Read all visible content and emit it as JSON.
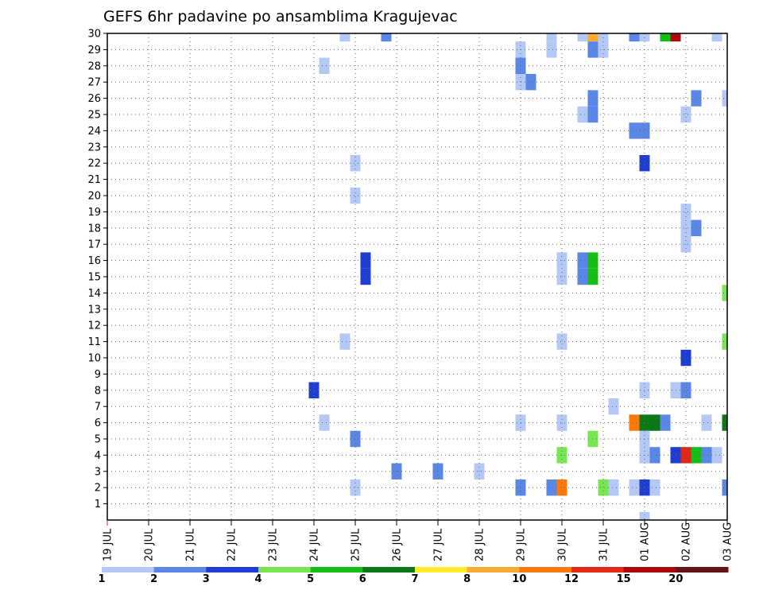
{
  "chart_data": {
    "type": "heatmap",
    "title": "GEFS 6hr padavine po ansamblima Kragujevac",
    "y_tick_labels": [
      "1",
      "2",
      "3",
      "4",
      "5",
      "6",
      "7",
      "8",
      "9",
      "10",
      "11",
      "12",
      "13",
      "14",
      "15",
      "16",
      "17",
      "18",
      "19",
      "20",
      "21",
      "22",
      "23",
      "24",
      "25",
      "26",
      "27",
      "28",
      "29",
      "30"
    ],
    "x_tick_labels": [
      "19 JUL",
      "20 JUL",
      "21 JUL",
      "22 JUL",
      "23 JUL",
      "24 JUL",
      "25 JUL",
      "26 JUL",
      "27 JUL",
      "28 JUL",
      "29 JUL",
      "30 JUL",
      "31 JUL",
      "01 AUG",
      "02 AUG",
      "03 AUG"
    ],
    "x_range_days": [
      0,
      15
    ],
    "y_range_members": [
      0,
      30
    ],
    "grid": true,
    "legend": {
      "position": "bottom",
      "boundary_labels": [
        "1",
        "2",
        "3",
        "4",
        "5",
        "6",
        "7",
        "8",
        "10",
        "12",
        "15",
        "20"
      ],
      "colors": [
        "#b4c8f5",
        "#5a87e6",
        "#1e3ed2",
        "#78e650",
        "#14be14",
        "#0a7814",
        "#ffeb28",
        "#ffaa32",
        "#ff780a",
        "#e12814",
        "#aa0a0a",
        "#641414"
      ]
    },
    "cells": [
      {
        "member": 30,
        "day": 5.75,
        "class": 0
      },
      {
        "member": 30,
        "day": 6.75,
        "class": 1
      },
      {
        "member": 30,
        "day": 10.75,
        "class": 0
      },
      {
        "member": 30,
        "day": 11.5,
        "class": 0
      },
      {
        "member": 30,
        "day": 11.75,
        "class": 7
      },
      {
        "member": 30,
        "day": 12,
        "class": 0
      },
      {
        "member": 30,
        "day": 12.75,
        "class": 1
      },
      {
        "member": 30,
        "day": 13,
        "class": 0
      },
      {
        "member": 30,
        "day": 13.5,
        "class": 4
      },
      {
        "member": 30,
        "day": 13.75,
        "class": 10
      },
      {
        "member": 30,
        "day": 14.75,
        "class": 0
      },
      {
        "member": 29,
        "day": 10,
        "class": 0
      },
      {
        "member": 29,
        "day": 10.75,
        "class": 0
      },
      {
        "member": 29,
        "day": 11.75,
        "class": 1
      },
      {
        "member": 29,
        "day": 12,
        "class": 0
      },
      {
        "member": 28,
        "day": 5.25,
        "class": 0
      },
      {
        "member": 28,
        "day": 10,
        "class": 1
      },
      {
        "member": 27,
        "day": 10,
        "class": 0
      },
      {
        "member": 27,
        "day": 10.25,
        "class": 1
      },
      {
        "member": 26,
        "day": 11.75,
        "class": 1
      },
      {
        "member": 26,
        "day": 14.25,
        "class": 1
      },
      {
        "member": 26,
        "day": 15,
        "class": 0
      },
      {
        "member": 25,
        "day": 11.5,
        "class": 0
      },
      {
        "member": 25,
        "day": 11.75,
        "class": 1
      },
      {
        "member": 25,
        "day": 14,
        "class": 0
      },
      {
        "member": 24,
        "day": 12.75,
        "class": 1
      },
      {
        "member": 24,
        "day": 13,
        "class": 1
      },
      {
        "member": 22,
        "day": 6,
        "class": 0
      },
      {
        "member": 22,
        "day": 13,
        "class": 2
      },
      {
        "member": 20,
        "day": 6,
        "class": 0
      },
      {
        "member": 19,
        "day": 14,
        "class": 0
      },
      {
        "member": 18,
        "day": 14,
        "class": 0
      },
      {
        "member": 18,
        "day": 14.25,
        "class": 1
      },
      {
        "member": 17,
        "day": 14,
        "class": 0
      },
      {
        "member": 16,
        "day": 6.25,
        "class": 2
      },
      {
        "member": 16,
        "day": 11,
        "class": 0
      },
      {
        "member": 16,
        "day": 11.5,
        "class": 1
      },
      {
        "member": 16,
        "day": 11.75,
        "class": 4
      },
      {
        "member": 15,
        "day": 6.25,
        "class": 2
      },
      {
        "member": 15,
        "day": 11,
        "class": 0
      },
      {
        "member": 15,
        "day": 11.5,
        "class": 1
      },
      {
        "member": 15,
        "day": 11.75,
        "class": 4
      },
      {
        "member": 14,
        "day": 15,
        "class": 3
      },
      {
        "member": 11,
        "day": 5.75,
        "class": 0
      },
      {
        "member": 11,
        "day": 11,
        "class": 0
      },
      {
        "member": 11,
        "day": 15,
        "class": 3
      },
      {
        "member": 10,
        "day": 14,
        "class": 2
      },
      {
        "member": 8,
        "day": 5,
        "class": 2
      },
      {
        "member": 8,
        "day": 13,
        "class": 0
      },
      {
        "member": 8,
        "day": 13.75,
        "class": 0
      },
      {
        "member": 8,
        "day": 14,
        "class": 1
      },
      {
        "member": 7,
        "day": 12.25,
        "class": 0
      },
      {
        "member": 6,
        "day": 5.25,
        "class": 0
      },
      {
        "member": 6,
        "day": 10,
        "class": 0
      },
      {
        "member": 6,
        "day": 11,
        "class": 0
      },
      {
        "member": 6,
        "day": 12.75,
        "class": 8
      },
      {
        "member": 6,
        "day": 13,
        "class": 5
      },
      {
        "member": 6,
        "day": 13.25,
        "class": 5
      },
      {
        "member": 6,
        "day": 13.5,
        "class": 1
      },
      {
        "member": 6,
        "day": 14.5,
        "class": 0
      },
      {
        "member": 6,
        "day": 15,
        "class": 5
      },
      {
        "member": 5,
        "day": 6,
        "class": 1
      },
      {
        "member": 5,
        "day": 11.75,
        "class": 3
      },
      {
        "member": 5,
        "day": 13,
        "class": 0
      },
      {
        "member": 4,
        "day": 11,
        "class": 3
      },
      {
        "member": 4,
        "day": 13,
        "class": 0
      },
      {
        "member": 4,
        "day": 13.25,
        "class": 1
      },
      {
        "member": 4,
        "day": 13.75,
        "class": 2
      },
      {
        "member": 4,
        "day": 14,
        "class": 9
      },
      {
        "member": 4,
        "day": 14.25,
        "class": 4
      },
      {
        "member": 4,
        "day": 14.5,
        "class": 1
      },
      {
        "member": 4,
        "day": 14.75,
        "class": 0
      },
      {
        "member": 3,
        "day": 7,
        "class": 1
      },
      {
        "member": 3,
        "day": 8,
        "class": 1
      },
      {
        "member": 3,
        "day": 9,
        "class": 0
      },
      {
        "member": 2,
        "day": 6,
        "class": 0
      },
      {
        "member": 2,
        "day": 10,
        "class": 1
      },
      {
        "member": 2,
        "day": 10.75,
        "class": 1
      },
      {
        "member": 2,
        "day": 11,
        "class": 8
      },
      {
        "member": 2,
        "day": 12,
        "class": 3
      },
      {
        "member": 2,
        "day": 12.25,
        "class": 0
      },
      {
        "member": 2,
        "day": 12.75,
        "class": 0
      },
      {
        "member": 2,
        "day": 13,
        "class": 2
      },
      {
        "member": 2,
        "day": 13.25,
        "class": 0
      },
      {
        "member": 2,
        "day": 15,
        "class": 1
      },
      {
        "member": 0,
        "day": 13,
        "class": 0
      }
    ]
  }
}
